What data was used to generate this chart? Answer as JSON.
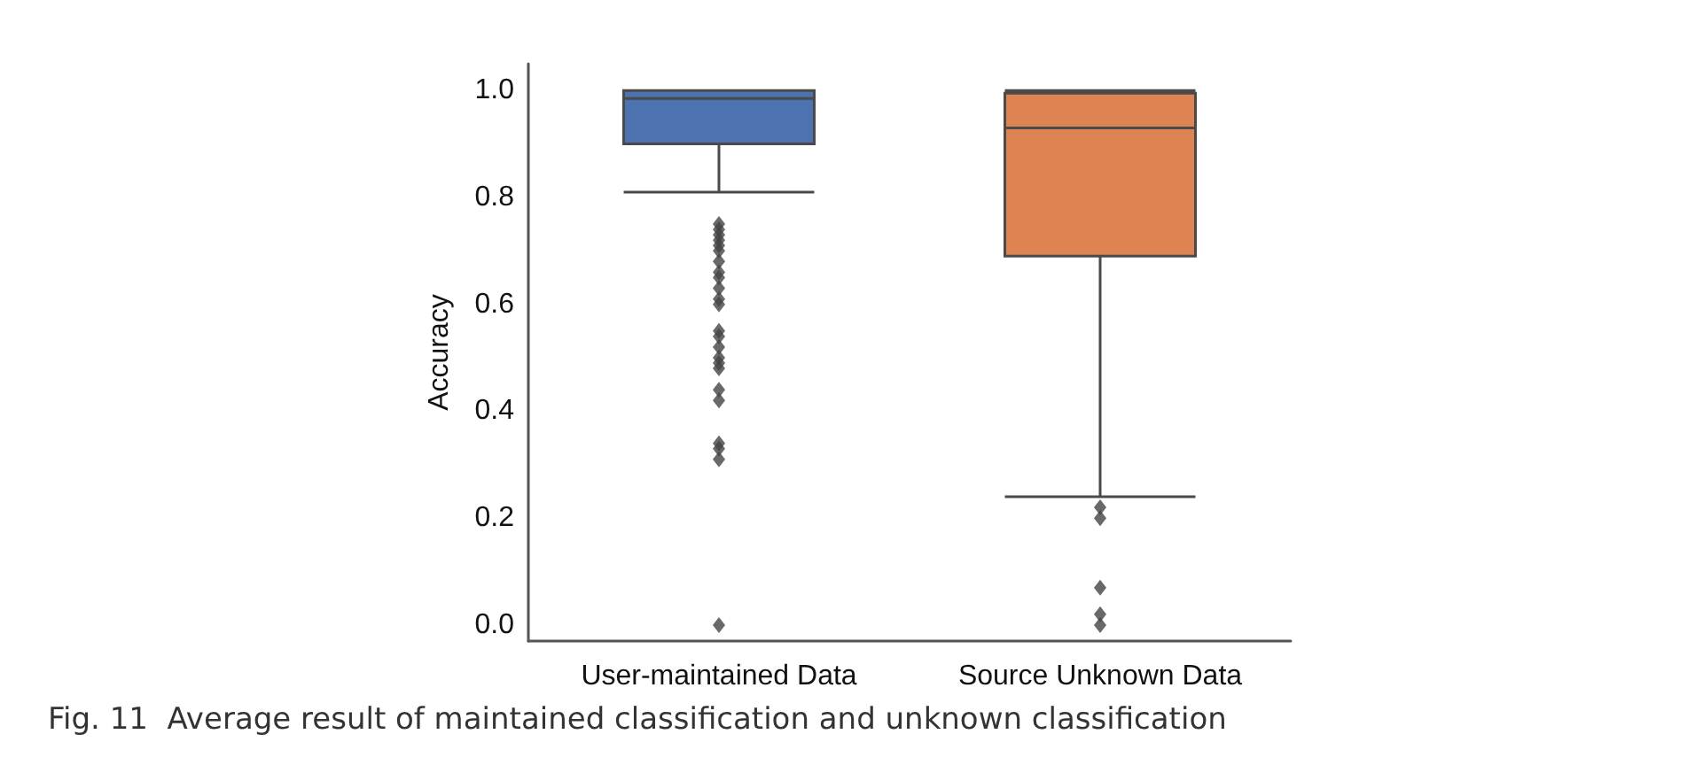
{
  "chart_data": {
    "type": "box",
    "ylabel": "Accuracy",
    "categories": [
      "User-maintained Data",
      "Source Unknown Data"
    ],
    "ylim": [
      -0.03,
      1.05
    ],
    "yticks": [
      {
        "value": 0.0,
        "label": "0.0"
      },
      {
        "value": 0.2,
        "label": "0.2"
      },
      {
        "value": 0.4,
        "label": "0.4"
      },
      {
        "value": 0.6,
        "label": "0.6"
      },
      {
        "value": 0.8,
        "label": "0.8"
      },
      {
        "value": 1.0,
        "label": "1.0"
      }
    ],
    "colors": [
      "#4c72b0",
      "#dd8452"
    ],
    "boxes": [
      {
        "low": 0.81,
        "q1": 0.9,
        "median": 0.985,
        "q3": 1.0,
        "high": 1.0,
        "outliers": [
          0.75,
          0.74,
          0.73,
          0.72,
          0.71,
          0.7,
          0.68,
          0.66,
          0.65,
          0.63,
          0.61,
          0.6,
          0.55,
          0.54,
          0.52,
          0.5,
          0.49,
          0.48,
          0.44,
          0.42,
          0.34,
          0.33,
          0.31,
          0.0
        ]
      },
      {
        "low": 0.24,
        "q1": 0.69,
        "median": 0.93,
        "q3": 0.995,
        "high": 1.0,
        "outliers": [
          0.22,
          0.2,
          0.07,
          0.02,
          0.0
        ]
      }
    ],
    "annotations": [
      "Fig. 11  Average result of maintained classification and unknown classification"
    ]
  }
}
